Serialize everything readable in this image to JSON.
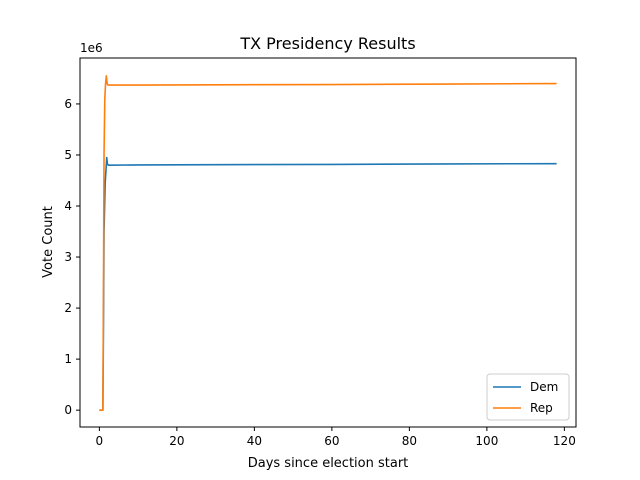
{
  "chart_data": {
    "type": "line",
    "title": "TX Presidency Results",
    "xlabel": "Days since election start",
    "ylabel": "Vote Count",
    "y_offset_text": "1e6",
    "xlim": [
      -5,
      123
    ],
    "ylim": [
      -0.33,
      6.9
    ],
    "y_scale_note": "values in millions",
    "xticks": [
      0,
      20,
      40,
      60,
      80,
      100,
      120
    ],
    "yticks": [
      0,
      1,
      2,
      3,
      4,
      5,
      6
    ],
    "x_tick_labels": [
      "0",
      "20",
      "40",
      "60",
      "80",
      "100",
      "120"
    ],
    "y_tick_labels": [
      "0",
      "1",
      "2",
      "3",
      "4",
      "5",
      "6"
    ],
    "grid": false,
    "legend_position": "lower-right",
    "series": [
      {
        "name": "Dem",
        "color": "#1f77b4",
        "x": [
          0,
          0.9,
          1.0,
          1.2,
          1.5,
          1.7,
          1.9,
          2.1,
          2.5,
          10,
          30,
          60,
          90,
          118
        ],
        "y": [
          0,
          0,
          1.0,
          3.5,
          4.45,
          4.7,
          4.95,
          4.81,
          4.8,
          4.805,
          4.81,
          4.815,
          4.825,
          4.83
        ]
      },
      {
        "name": "Rep",
        "color": "#ff7f0e",
        "x": [
          0,
          0.9,
          1.0,
          1.2,
          1.4,
          1.6,
          1.8,
          2.0,
          2.2,
          10,
          30,
          60,
          90,
          118
        ],
        "y": [
          0,
          0,
          1.5,
          5.0,
          6.1,
          6.4,
          6.55,
          6.4,
          6.37,
          6.37,
          6.375,
          6.38,
          6.39,
          6.4
        ]
      }
    ]
  }
}
